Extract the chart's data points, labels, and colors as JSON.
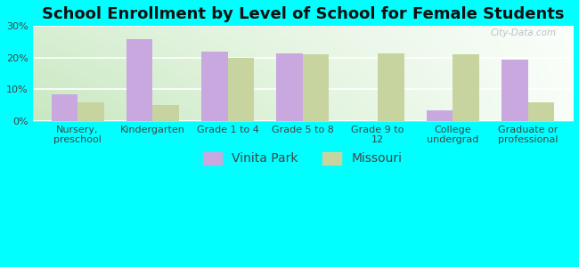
{
  "title": "School Enrollment by Level of School for Female Students",
  "categories": [
    "Nursery,\npreschool",
    "Kindergarten",
    "Grade 1 to 4",
    "Grade 5 to 8",
    "Grade 9 to\n12",
    "College\nundergrad",
    "Graduate or\nprofessional"
  ],
  "vinita_park": [
    8.5,
    26.0,
    22.0,
    21.5,
    0,
    3.5,
    19.5
  ],
  "missouri": [
    6.0,
    5.0,
    20.0,
    21.0,
    21.5,
    21.0,
    6.0
  ],
  "vinita_color": "#c9a8e0",
  "missouri_color": "#c8d4a0",
  "background_color": "#00ffff",
  "grad_color_left": "#c8e8c0",
  "grad_color_right": "#f0f8f0",
  "ylim": [
    0,
    30
  ],
  "yticks": [
    0,
    10,
    20,
    30
  ],
  "ytick_labels": [
    "0%",
    "10%",
    "20%",
    "30%"
  ],
  "legend_labels": [
    "Vinita Park",
    "Missouri"
  ],
  "watermark": "City-Data.com",
  "title_fontsize": 13,
  "tick_fontsize": 8,
  "legend_fontsize": 10,
  "bar_width": 0.35
}
